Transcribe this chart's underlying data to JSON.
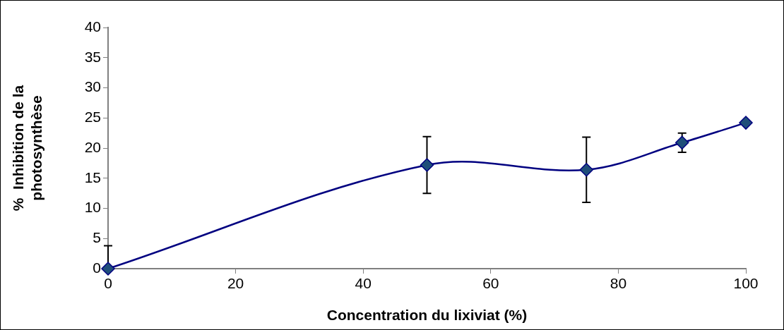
{
  "chart_data": {
    "type": "line",
    "xlabel": "Concentration du lixiviat (%)",
    "ylabel": "%  Inhibition de la\nphotosynthèse",
    "x": [
      0,
      50,
      75,
      90,
      100
    ],
    "series": [
      {
        "color": "#000080",
        "values": [
          0,
          17.2,
          16.4,
          20.9,
          24.2
        ],
        "errors": [
          [
            0,
            3.8
          ],
          4.7,
          5.4,
          1.6,
          null
        ]
      }
    ],
    "xlim": [
      0,
      100
    ],
    "xticks": [
      0,
      20,
      40,
      60,
      80,
      100
    ],
    "ylim": [
      0,
      40
    ],
    "yticks": [
      0,
      5,
      10,
      15,
      20,
      25,
      30,
      35,
      40
    ],
    "grid": false,
    "legend": false,
    "marker": "diamond",
    "line_style": "solid"
  }
}
